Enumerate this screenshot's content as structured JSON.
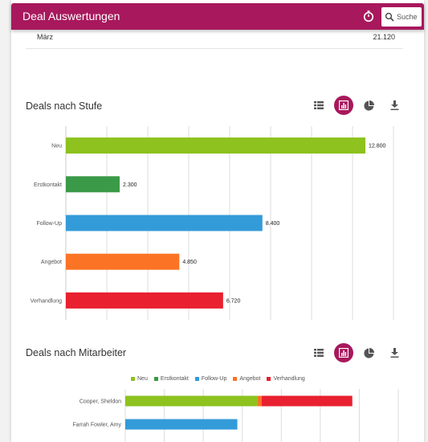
{
  "appbar": {
    "title": "Deal Auswertungen",
    "search_placeholder": "Suche",
    "accent": "#a8185d"
  },
  "top_row": {
    "label": "März",
    "value": "21.120"
  },
  "section1": {
    "title": "Deals nach Stufe"
  },
  "section2": {
    "title": "Deals nach Mitarbeiter"
  },
  "toolbar_icons": [
    "list-icon",
    "bar-chart-icon",
    "pie-chart-icon",
    "download-icon"
  ],
  "chart_data": [
    {
      "type": "bar",
      "orientation": "horizontal",
      "title": "Deals nach Stufe",
      "categories": [
        "Neu",
        "Erstkontakt",
        "Follow-Up",
        "Angebot",
        "Verhandlung"
      ],
      "values": [
        12800,
        2300,
        8400,
        4850,
        6720
      ],
      "value_labels": [
        "12.800",
        "2.300",
        "8.400",
        "4.850",
        "6.720"
      ],
      "colors": [
        "#8dc21f",
        "#3a9a48",
        "#349bd9",
        "#fb7325",
        "#e8202f"
      ],
      "xlim": [
        0,
        14000
      ],
      "grid": true
    },
    {
      "type": "bar",
      "orientation": "horizontal",
      "stacked": true,
      "title": "Deals nach Mitarbeiter",
      "categories": [
        "Cooper, Sheldon",
        "Farrah Fowler, Amy"
      ],
      "legend": [
        "Neu",
        "Erstkontakt",
        "Follow-Up",
        "Angebot",
        "Verhandlung"
      ],
      "legend_position": "top",
      "series": [
        {
          "name": "Neu",
          "color": "#8dc21f",
          "values": [
            9200,
            0
          ]
        },
        {
          "name": "Erstkontakt",
          "color": "#3a9a48",
          "values": [
            0,
            0
          ]
        },
        {
          "name": "Follow-Up",
          "color": "#349bd9",
          "values": [
            0,
            7800
          ]
        },
        {
          "name": "Angebot",
          "color": "#fb7325",
          "values": [
            300,
            0
          ]
        },
        {
          "name": "Verhandlung",
          "color": "#e8202f",
          "values": [
            6300,
            0
          ]
        }
      ],
      "xlim": [
        0,
        19000
      ],
      "grid": true
    }
  ]
}
